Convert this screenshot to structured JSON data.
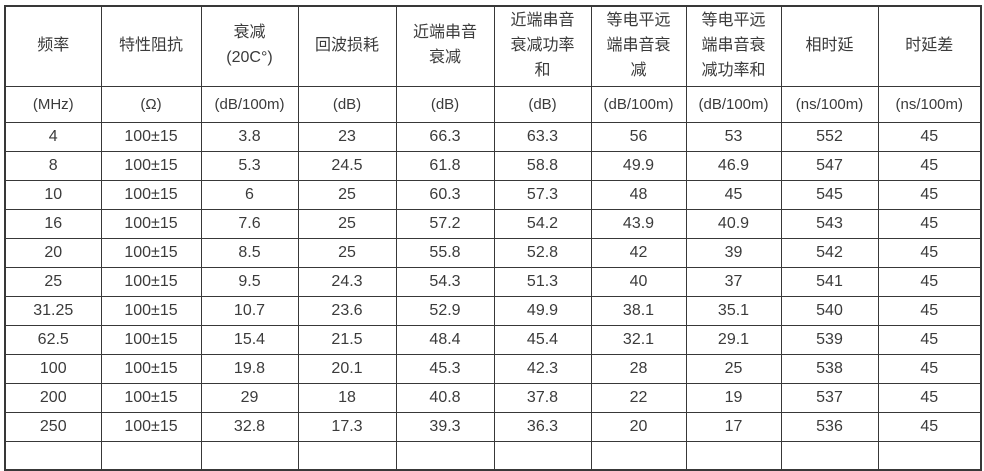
{
  "table": {
    "description": "cable-transmission-spec-table",
    "columns": [
      {
        "title": "频率",
        "unit": "(MHz)"
      },
      {
        "title": "特性阻抗",
        "unit": "(Ω)"
      },
      {
        "title": "衰减\n(20C°)",
        "unit": "(dB/100m)"
      },
      {
        "title": "回波损耗",
        "unit": "(dB)"
      },
      {
        "title": "近端串音\n衰减",
        "unit": "(dB)"
      },
      {
        "title": "近端串音\n衰减功率\n和",
        "unit": "(dB)"
      },
      {
        "title": "等电平远\n端串音衰\n减",
        "unit": "(dB/100m)"
      },
      {
        "title": "等电平远\n端串音衰\n减功率和",
        "unit": "(dB/100m)"
      },
      {
        "title": "相时延",
        "unit": "(ns/100m)"
      },
      {
        "title": "时延差",
        "unit": "(ns/100m)"
      }
    ],
    "rows": [
      [
        "4",
        "100±15",
        "3.8",
        "23",
        "66.3",
        "63.3",
        "56",
        "53",
        "552",
        "45"
      ],
      [
        "8",
        "100±15",
        "5.3",
        "24.5",
        "61.8",
        "58.8",
        "49.9",
        "46.9",
        "547",
        "45"
      ],
      [
        "10",
        "100±15",
        "6",
        "25",
        "60.3",
        "57.3",
        "48",
        "45",
        "545",
        "45"
      ],
      [
        "16",
        "100±15",
        "7.6",
        "25",
        "57.2",
        "54.2",
        "43.9",
        "40.9",
        "543",
        "45"
      ],
      [
        "20",
        "100±15",
        "8.5",
        "25",
        "55.8",
        "52.8",
        "42",
        "39",
        "542",
        "45"
      ],
      [
        "25",
        "100±15",
        "9.5",
        "24.3",
        "54.3",
        "51.3",
        "40",
        "37",
        "541",
        "45"
      ],
      [
        "31.25",
        "100±15",
        "10.7",
        "23.6",
        "52.9",
        "49.9",
        "38.1",
        "35.1",
        "540",
        "45"
      ],
      [
        "62.5",
        "100±15",
        "15.4",
        "21.5",
        "48.4",
        "45.4",
        "32.1",
        "29.1",
        "539",
        "45"
      ],
      [
        "100",
        "100±15",
        "19.8",
        "20.1",
        "45.3",
        "42.3",
        "28",
        "25",
        "538",
        "45"
      ],
      [
        "200",
        "100±15",
        "29",
        "18",
        "40.8",
        "37.8",
        "22",
        "19",
        "537",
        "45"
      ],
      [
        "250",
        "100±15",
        "32.8",
        "17.3",
        "39.3",
        "36.3",
        "20",
        "17",
        "536",
        "45"
      ]
    ]
  }
}
